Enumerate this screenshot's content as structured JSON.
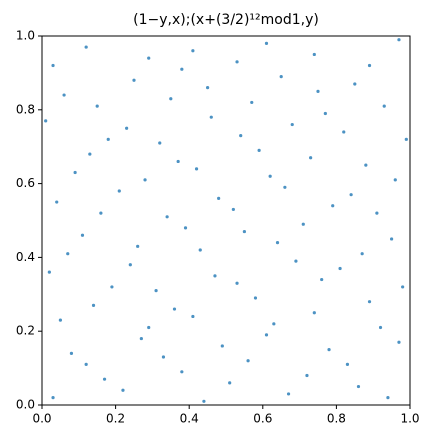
{
  "chart_data": {
    "type": "scatter",
    "title": "(1−y,x);(x+(3/2)¹²mod1,y)",
    "color": "#1f77b4",
    "xlim": [
      0,
      1
    ],
    "ylim": [
      0,
      1
    ],
    "xticks": [
      {
        "value": 0,
        "label": "0.0"
      },
      {
        "value": 0.2,
        "label": "0.2"
      },
      {
        "value": 0.4,
        "label": "0.4"
      },
      {
        "value": 0.6,
        "label": "0.6"
      },
      {
        "value": 0.8,
        "label": "0.8"
      },
      {
        "value": 1,
        "label": "1.0"
      }
    ],
    "yticks": [
      {
        "value": 0,
        "label": "0.0"
      },
      {
        "value": 0.2,
        "label": "0.2"
      },
      {
        "value": 0.4,
        "label": "0.4"
      },
      {
        "value": 0.6,
        "label": "0.6"
      },
      {
        "value": 0.8,
        "label": "0.8"
      },
      {
        "value": 1,
        "label": "1.0"
      }
    ],
    "x": [
      0.03,
      0.17,
      0.22,
      0.38,
      0.44,
      0.51,
      0.67,
      0.72,
      0.86,
      0.94,
      0.08,
      0.12,
      0.27,
      0.33,
      0.49,
      0.56,
      0.61,
      0.78,
      0.83,
      0.97,
      0.05,
      0.14,
      0.29,
      0.36,
      0.41,
      0.58,
      0.63,
      0.74,
      0.89,
      0.92,
      0.02,
      0.19,
      0.24,
      0.31,
      0.47,
      0.53,
      0.69,
      0.76,
      0.81,
      0.98,
      0.07,
      0.11,
      0.26,
      0.39,
      0.43,
      0.55,
      0.64,
      0.71,
      0.87,
      0.95,
      0.04,
      0.16,
      0.21,
      0.34,
      0.48,
      0.52,
      0.66,
      0.79,
      0.84,
      0.91,
      0.09,
      0.13,
      0.28,
      0.37,
      0.42,
      0.59,
      0.62,
      0.73,
      0.88,
      0.96,
      0.01,
      0.18,
      0.23,
      0.32,
      0.46,
      0.54,
      0.68,
      0.77,
      0.82,
      0.99,
      0.06,
      0.15,
      0.25,
      0.35,
      0.45,
      0.57,
      0.65,
      0.75,
      0.85,
      0.93,
      0.03,
      0.12,
      0.29,
      0.38,
      0.41,
      0.53,
      0.61,
      0.74,
      0.89,
      0.97
    ],
    "values": [
      0.02,
      0.07,
      0.04,
      0.09,
      0.01,
      0.06,
      0.03,
      0.08,
      0.05,
      0.02,
      0.14,
      0.11,
      0.18,
      0.13,
      0.16,
      0.12,
      0.19,
      0.15,
      0.11,
      0.17,
      0.23,
      0.27,
      0.21,
      0.26,
      0.24,
      0.29,
      0.22,
      0.25,
      0.28,
      0.21,
      0.36,
      0.32,
      0.38,
      0.31,
      0.35,
      0.33,
      0.39,
      0.34,
      0.37,
      0.32,
      0.41,
      0.46,
      0.43,
      0.48,
      0.42,
      0.47,
      0.44,
      0.49,
      0.41,
      0.45,
      0.55,
      0.52,
      0.58,
      0.51,
      0.56,
      0.53,
      0.59,
      0.54,
      0.57,
      0.52,
      0.63,
      0.68,
      0.61,
      0.66,
      0.64,
      0.69,
      0.62,
      0.67,
      0.65,
      0.61,
      0.77,
      0.72,
      0.75,
      0.71,
      0.78,
      0.73,
      0.76,
      0.79,
      0.74,
      0.72,
      0.84,
      0.81,
      0.88,
      0.83,
      0.86,
      0.82,
      0.89,
      0.85,
      0.87,
      0.81,
      0.92,
      0.97,
      0.94,
      0.91,
      0.96,
      0.93,
      0.98,
      0.95,
      0.92,
      0.99
    ]
  }
}
